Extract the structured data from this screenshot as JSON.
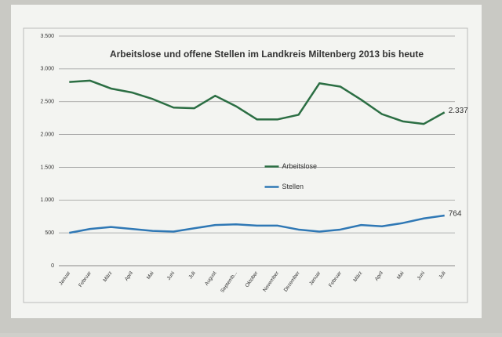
{
  "chart_data": {
    "type": "line",
    "title": "Arbeitslose und offene Stellen im Landkreis Miltenberg 2013 bis heute",
    "categories": [
      "Januar",
      "Februar",
      "März",
      "April",
      "Mai",
      "Juni",
      "Juli",
      "August",
      "Septemb...",
      "Oktober",
      "November",
      "Dezember",
      "Januar",
      "Februar",
      "März",
      "April",
      "Mai",
      "Juni",
      "Juli"
    ],
    "series": [
      {
        "name": "Arbeitslose",
        "color": "#2b6e43",
        "values": [
          2800,
          2820,
          2700,
          2640,
          2540,
          2410,
          2400,
          2590,
          2430,
          2230,
          2230,
          2300,
          2780,
          2730,
          2530,
          2310,
          2200,
          2160,
          2337
        ],
        "value_labels": [
          null,
          null,
          null,
          null,
          null,
          null,
          null,
          null,
          null,
          null,
          null,
          null,
          null,
          null,
          null,
          null,
          null,
          null,
          "2.337"
        ]
      },
      {
        "name": "Stellen",
        "color": "#2f78b5",
        "values": [
          500,
          560,
          590,
          560,
          530,
          520,
          570,
          620,
          630,
          610,
          610,
          550,
          520,
          550,
          620,
          600,
          650,
          720,
          764
        ],
        "value_labels": [
          null,
          null,
          null,
          null,
          null,
          null,
          null,
          null,
          null,
          null,
          null,
          null,
          null,
          null,
          null,
          null,
          null,
          null,
          "764"
        ]
      }
    ],
    "ylim": [
      0,
      3500
    ],
    "yticks": [
      0,
      500,
      {
        "value": 1000,
        "label": "1.000"
      },
      {
        "value": 1500,
        "label": "1.500"
      },
      {
        "value": 2000,
        "label": "2.000"
      },
      {
        "value": 2500,
        "label": "2.500"
      },
      {
        "value": 3000,
        "label": "3.000"
      },
      {
        "value": 3500,
        "label": "3.500"
      }
    ],
    "grid": true,
    "legend": "center"
  }
}
